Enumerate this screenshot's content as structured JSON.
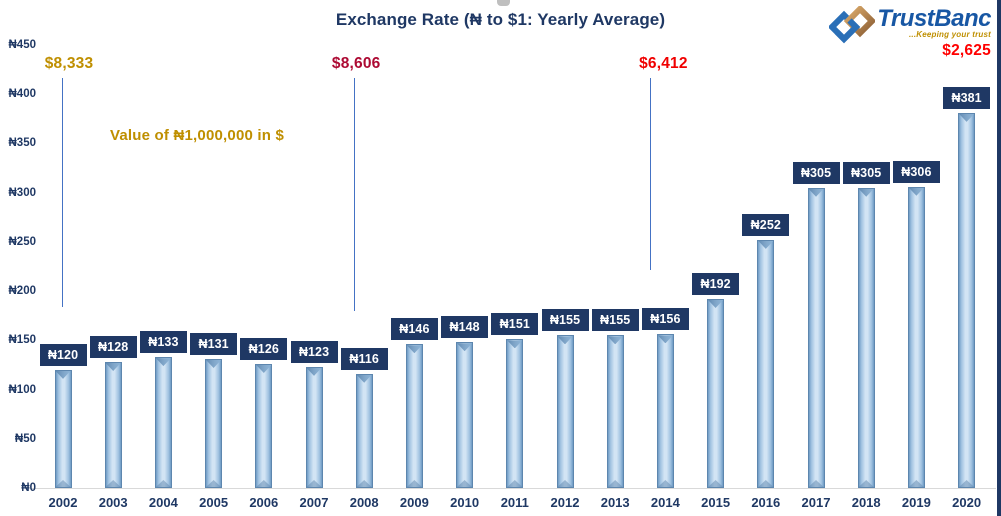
{
  "title": "Exchange Rate (₦ to $1: Yearly Average)",
  "logo": {
    "name": "TrustBanc",
    "tagline": "...Keeping your trust",
    "icon": "interlocking-diamonds",
    "name_color": "#1857A4",
    "tagline_color": "#BF8F00"
  },
  "colors": {
    "navy": "#1F3864",
    "bar_light": "#d2e4f4",
    "bar_edge": "#6f9bc4",
    "gold": "#BF8F00",
    "dark_red": "#AD0A33",
    "red": "#F00000",
    "bright_red": "#FF0000",
    "line_blue": "#4472C4",
    "axis_gray": "#D9D9D9"
  },
  "chart_data": {
    "type": "bar",
    "title": "Exchange Rate (₦ to $1: Yearly Average)",
    "categories": [
      2002,
      2003,
      2004,
      2005,
      2006,
      2007,
      2008,
      2009,
      2010,
      2011,
      2012,
      2013,
      2014,
      2015,
      2016,
      2017,
      2018,
      2019,
      2020
    ],
    "values": [
      120,
      128,
      133,
      131,
      126,
      123,
      116,
      146,
      148,
      151,
      155,
      155,
      156,
      192,
      252,
      305,
      305,
      306,
      381
    ],
    "value_prefix": "₦",
    "xlabel": "",
    "ylabel": "",
    "ylim": [
      0,
      450
    ],
    "y_tick_step": 50,
    "y_tick_labels": [
      "₦450",
      "₦400",
      "₦350",
      "₦300",
      "₦250",
      "₦200",
      "₦150",
      "₦100",
      "₦50",
      "₦0"
    ],
    "grid": false,
    "legend": "none",
    "annotations": {
      "note": "Value of ₦1,000,000 in $",
      "markers": [
        {
          "year": 2002,
          "label": "$8,333",
          "color": "#BF8F00",
          "line": true
        },
        {
          "year": 2008,
          "label": "$8,606",
          "color": "#AD0A33",
          "line": true
        },
        {
          "year": 2014,
          "label": "$6,412",
          "color": "#F00000",
          "line": true
        },
        {
          "year": 2020,
          "label": "$2,625",
          "color": "#FF0000",
          "line": false
        }
      ]
    }
  }
}
